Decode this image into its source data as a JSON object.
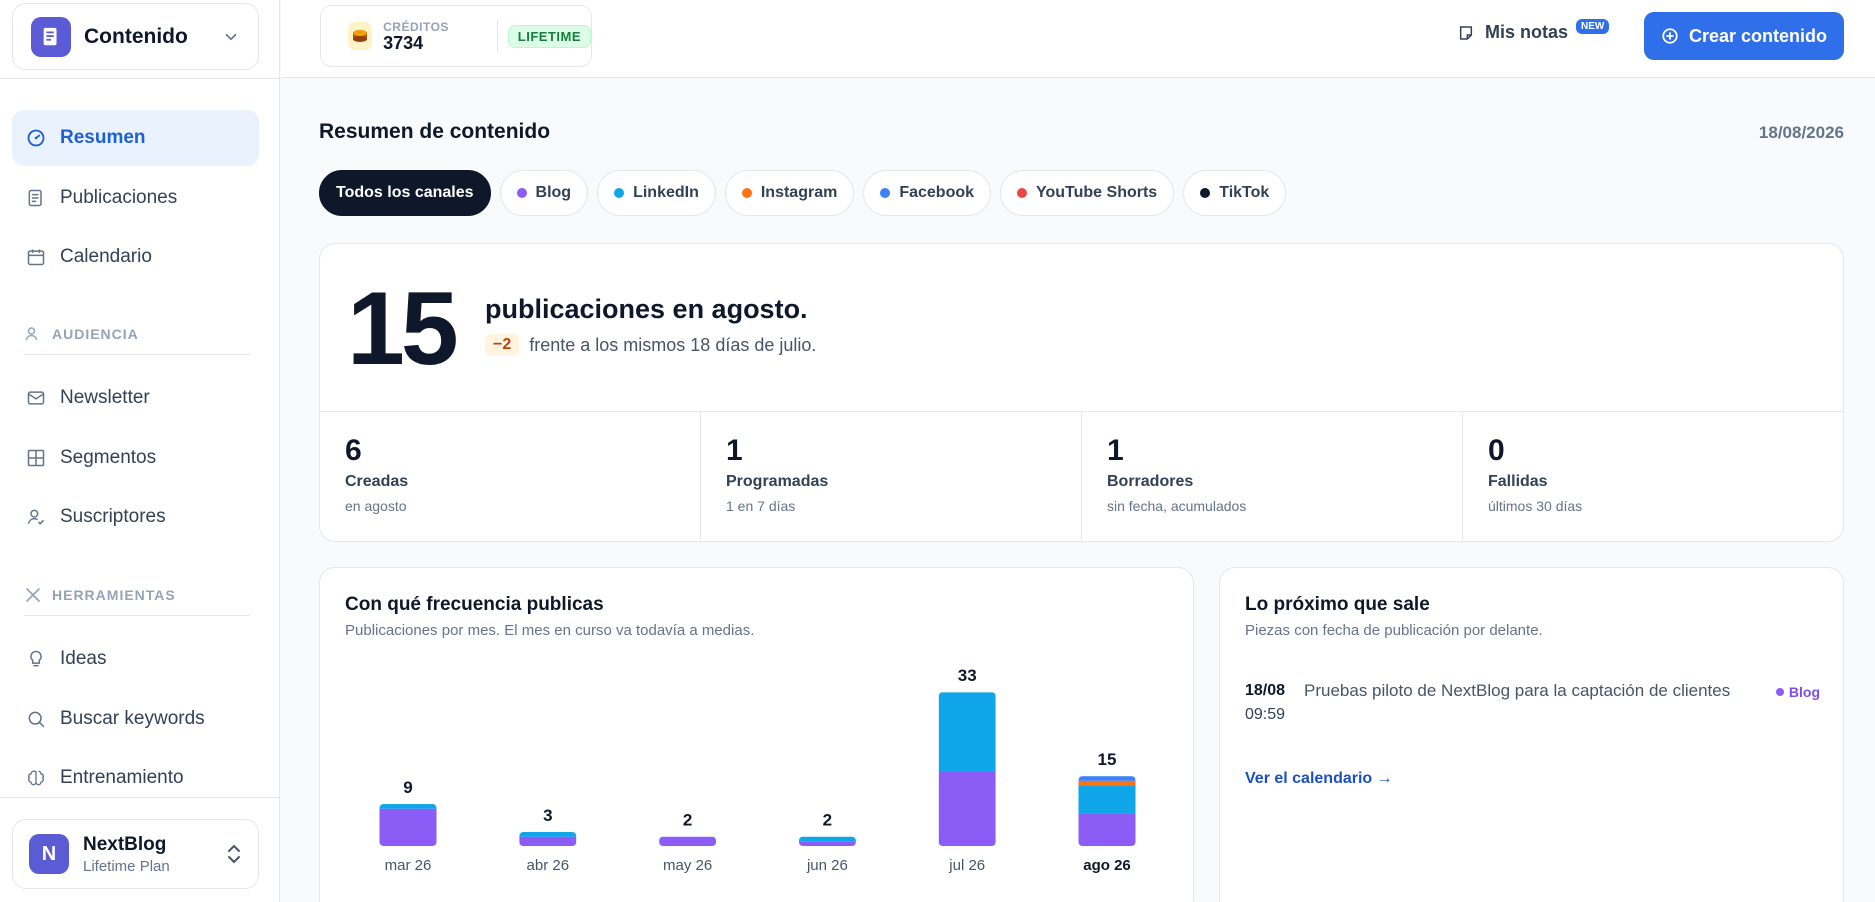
{
  "workspace": {
    "name": "Contenido"
  },
  "sidebar": {
    "items_main": [
      {
        "label": "Resumen",
        "icon": "gauge-icon",
        "active": true
      },
      {
        "label": "Publicaciones",
        "icon": "document-icon"
      },
      {
        "label": "Calendario",
        "icon": "calendar-icon"
      }
    ],
    "section_audience": "AUDIENCIA",
    "items_audience": [
      {
        "label": "Newsletter",
        "icon": "mail-icon"
      },
      {
        "label": "Segmentos",
        "icon": "grid-icon"
      },
      {
        "label": "Suscriptores",
        "icon": "user-check-icon"
      }
    ],
    "section_tools": "HERRAMIENTAS",
    "items_tools": [
      {
        "label": "Ideas",
        "icon": "lightbulb-icon"
      },
      {
        "label": "Buscar keywords",
        "icon": "search-icon"
      },
      {
        "label": "Entrenamiento",
        "icon": "brain-icon"
      }
    ]
  },
  "account": {
    "initial": "N",
    "name": "NextBlog",
    "plan": "Lifetime Plan"
  },
  "header": {
    "credits_label": "CRÉDITOS",
    "credits_value": "3734",
    "plan_badge": "LIFETIME",
    "notes_label": "Mis notas",
    "notes_badge": "NEW",
    "create_label": "Crear contenido"
  },
  "overview": {
    "title": "Resumen de contenido",
    "date": "18/08/2026",
    "filters": [
      {
        "label": "Todos los canales",
        "active": true,
        "color": ""
      },
      {
        "label": "Blog",
        "color": "#8b5cf6"
      },
      {
        "label": "LinkedIn",
        "color": "#0ea5e9"
      },
      {
        "label": "Instagram",
        "color": "#f97316"
      },
      {
        "label": "Facebook",
        "color": "#3b82f6"
      },
      {
        "label": "YouTube Shorts",
        "color": "#ef4444"
      },
      {
        "label": "TikTok",
        "color": "#0f172a"
      }
    ]
  },
  "summary": {
    "total": "15",
    "headline": "publicaciones en agosto.",
    "delta": "−2",
    "delta_text": "frente a los mismos 18 días de julio.",
    "stats": [
      {
        "value": "6",
        "label": "Creadas",
        "sub": "en agosto"
      },
      {
        "value": "1",
        "label": "Programadas",
        "sub": "1 en 7 días"
      },
      {
        "value": "1",
        "label": "Borradores",
        "sub": "sin fecha, acumulados"
      },
      {
        "value": "0",
        "label": "Fallidas",
        "sub": "últimos 30 días"
      }
    ]
  },
  "frequency": {
    "title": "Con qué frecuencia publicas",
    "subtitle": "Publicaciones por mes. El mes en curso va todavía a medias."
  },
  "chart_data": {
    "type": "bar",
    "stacked": true,
    "categories": [
      "mar 26",
      "abr 26",
      "may 26",
      "jun 26",
      "jul 26",
      "ago 26"
    ],
    "totals": [
      9,
      3,
      2,
      2,
      33,
      15
    ],
    "current_index": 5,
    "series": [
      {
        "color": "#8b5cf6",
        "values": [
          8,
          2,
          2,
          1,
          16,
          7
        ]
      },
      {
        "color": "#0ea5e9",
        "values": [
          1,
          1,
          0,
          1,
          17,
          6
        ]
      },
      {
        "color": "#f97316",
        "values": [
          0,
          0,
          0,
          0,
          0,
          1
        ]
      },
      {
        "color": "#3b82f6",
        "values": [
          0,
          0,
          0,
          0,
          0,
          1
        ]
      }
    ],
    "ylim": [
      0,
      33
    ],
    "grid": false,
    "legend": "none"
  },
  "upcoming": {
    "title": "Lo próximo que sale",
    "subtitle": "Piezas con fecha de publicación por delante.",
    "items": [
      {
        "date": "18/08",
        "time": "09:59",
        "title": "Pruebas piloto de NextBlog para la captación de clientes",
        "channel": "Blog",
        "channel_color": "#8b5cf6"
      }
    ],
    "link": "Ver el calendario →"
  }
}
